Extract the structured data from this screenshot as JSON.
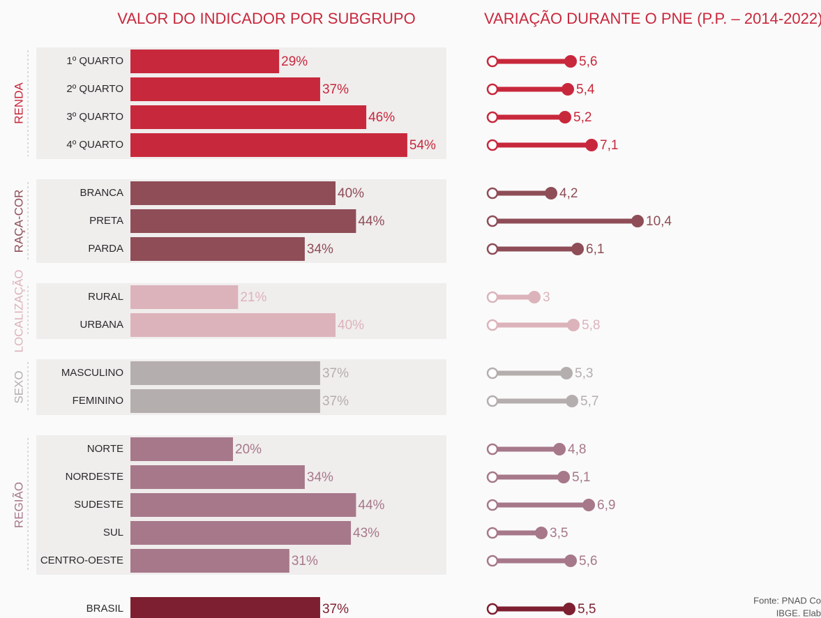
{
  "chart_data": [
    {
      "type": "bar",
      "title": "VALOR DO INDICADOR POR SUBGRUPO",
      "groups": [
        {
          "name": "RENDA",
          "color": "#c8283c",
          "categories": [
            "1º QUARTO",
            "2º QUARTO",
            "3º QUARTO",
            "4º QUARTO"
          ],
          "values": [
            29,
            37,
            46,
            54
          ],
          "value_labels": [
            "29%",
            "37%",
            "46%",
            "54%"
          ]
        },
        {
          "name": "RAÇA-COR",
          "color": "#8e4d57",
          "categories": [
            "BRANCA",
            "PRETA",
            "PARDA"
          ],
          "values": [
            40,
            44,
            34
          ],
          "value_labels": [
            "40%",
            "44%",
            "34%"
          ]
        },
        {
          "name": "LOCALIZAÇÃO",
          "color": "#dcb3bb",
          "categories": [
            "RURAL",
            "URBANA"
          ],
          "values": [
            21,
            40
          ],
          "value_labels": [
            "21%",
            "40%"
          ]
        },
        {
          "name": "SEXO",
          "color": "#b5aeae",
          "categories": [
            "MASCULINO",
            "FEMININO"
          ],
          "values": [
            37,
            37
          ],
          "value_labels": [
            "37%",
            "37%"
          ]
        },
        {
          "name": "REGIÃO",
          "color": "#a6788a",
          "categories": [
            "NORTE",
            "NORDESTE",
            "SUDESTE",
            "SUL",
            "CENTRO-OESTE"
          ],
          "values": [
            20,
            34,
            44,
            43,
            31
          ],
          "value_labels": [
            "20%",
            "34%",
            "44%",
            "43%",
            "31%"
          ]
        },
        {
          "color": "#7d1f30",
          "categories": [
            "BRASIL"
          ],
          "values": [
            37
          ],
          "value_labels": [
            "37%"
          ]
        }
      ]
    },
    {
      "type": "dumbbell",
      "title": "VARIAÇÃO DURANTE O PNE (P.P. – 2014-2022)",
      "groups": [
        {
          "color": "#c8283c",
          "values": [
            5.6,
            5.4,
            5.2,
            7.1
          ],
          "value_labels": [
            "5,6",
            "5,4",
            "5,2",
            "7,1"
          ]
        },
        {
          "color": "#8e4d57",
          "values": [
            4.2,
            10.4,
            6.1
          ],
          "value_labels": [
            "4,2",
            "10,4",
            "6,1"
          ]
        },
        {
          "color": "#dcb3bb",
          "values": [
            3,
            5.8
          ],
          "value_labels": [
            "3",
            "5,8"
          ]
        },
        {
          "color": "#b5aeae",
          "values": [
            5.3,
            5.7
          ],
          "value_labels": [
            "5,3",
            "5,7"
          ]
        },
        {
          "color": "#a6788a",
          "values": [
            4.8,
            5.1,
            6.9,
            3.5,
            5.6
          ],
          "value_labels": [
            "4,8",
            "5,1",
            "6,9",
            "3,5",
            "5,6"
          ]
        },
        {
          "color": "#7d1f30",
          "values": [
            5.5
          ],
          "value_labels": [
            "5,5"
          ]
        }
      ]
    }
  ],
  "source": [
    "Fonte: PNAD Co",
    "IBGE. Elab"
  ]
}
